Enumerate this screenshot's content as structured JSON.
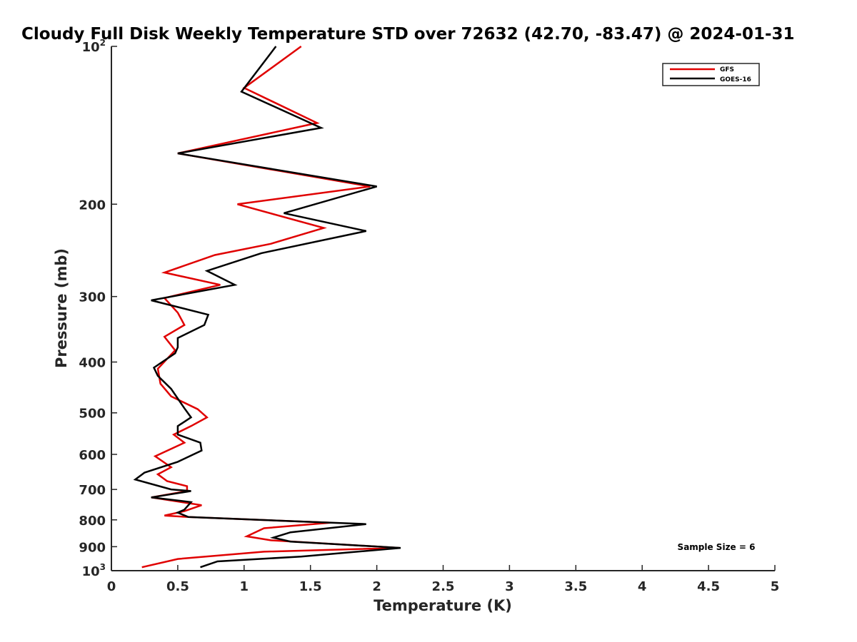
{
  "chart_data": {
    "type": "line",
    "title": "Cloudy Full Disk Weekly Temperature STD over 72632 (42.70, -83.47) @ 2024-01-31",
    "xlabel": "Temperature (K)",
    "ylabel": "Pressure (mb)",
    "xlim": [
      0,
      5
    ],
    "ylim": [
      1000,
      100
    ],
    "y_scale": "log",
    "y_reversed": true,
    "grid": false,
    "legend_position": "top-right",
    "x_ticks": [
      0,
      0.5,
      1,
      1.5,
      2,
      2.5,
      3,
      3.5,
      4,
      4.5,
      5
    ],
    "x_tick_labels": [
      "0",
      "0.5",
      "1",
      "1.5",
      "2",
      "2.5",
      "3",
      "3.5",
      "4",
      "4.5",
      "5"
    ],
    "y_ticks": [
      {
        "value": 100,
        "base": "10",
        "exp": "2"
      },
      {
        "value": 200,
        "label": "200"
      },
      {
        "value": 300,
        "label": "300"
      },
      {
        "value": 400,
        "label": "400"
      },
      {
        "value": 500,
        "label": "500"
      },
      {
        "value": 600,
        "label": "600"
      },
      {
        "value": 700,
        "label": "700"
      },
      {
        "value": 800,
        "label": "800"
      },
      {
        "value": 900,
        "label": "900"
      },
      {
        "value": 1000,
        "base": "10",
        "exp": "3"
      }
    ],
    "series": [
      {
        "name": "GFS",
        "color": "#e00000",
        "points": [
          [
            1.43,
            100
          ],
          [
            1.0,
            120
          ],
          [
            1.55,
            140
          ],
          [
            0.5,
            160
          ],
          [
            1.95,
            185
          ],
          [
            0.95,
            200
          ],
          [
            1.6,
            222
          ],
          [
            1.2,
            238
          ],
          [
            0.78,
            250
          ],
          [
            0.4,
            270
          ],
          [
            0.82,
            285
          ],
          [
            0.4,
            302
          ],
          [
            0.5,
            322
          ],
          [
            0.55,
            340
          ],
          [
            0.4,
            358
          ],
          [
            0.48,
            380
          ],
          [
            0.35,
            412
          ],
          [
            0.37,
            440
          ],
          [
            0.45,
            465
          ],
          [
            0.65,
            492
          ],
          [
            0.72,
            510
          ],
          [
            0.6,
            530
          ],
          [
            0.47,
            550
          ],
          [
            0.55,
            570
          ],
          [
            0.33,
            605
          ],
          [
            0.45,
            635
          ],
          [
            0.35,
            655
          ],
          [
            0.42,
            675
          ],
          [
            0.57,
            690
          ],
          [
            0.57,
            705
          ],
          [
            0.3,
            725
          ],
          [
            0.68,
            750
          ],
          [
            0.55,
            770
          ],
          [
            0.4,
            785
          ],
          [
            0.58,
            790
          ],
          [
            1.65,
            810
          ],
          [
            1.15,
            830
          ],
          [
            1.02,
            860
          ],
          [
            1.2,
            875
          ],
          [
            2.17,
            905
          ],
          [
            1.15,
            920
          ],
          [
            0.5,
            950
          ],
          [
            0.23,
            985
          ]
        ]
      },
      {
        "name": "GOES-16",
        "color": "#000000",
        "points": [
          [
            1.24,
            100
          ],
          [
            0.98,
            122
          ],
          [
            1.58,
            143
          ],
          [
            0.5,
            160
          ],
          [
            2.0,
            185
          ],
          [
            1.3,
            208
          ],
          [
            1.92,
            225
          ],
          [
            1.13,
            248
          ],
          [
            0.72,
            268
          ],
          [
            0.93,
            285
          ],
          [
            0.3,
            305
          ],
          [
            0.73,
            325
          ],
          [
            0.7,
            340
          ],
          [
            0.5,
            360
          ],
          [
            0.5,
            375
          ],
          [
            0.48,
            385
          ],
          [
            0.32,
            410
          ],
          [
            0.35,
            425
          ],
          [
            0.45,
            450
          ],
          [
            0.55,
            490
          ],
          [
            0.6,
            510
          ],
          [
            0.5,
            530
          ],
          [
            0.5,
            550
          ],
          [
            0.67,
            570
          ],
          [
            0.68,
            590
          ],
          [
            0.5,
            620
          ],
          [
            0.25,
            650
          ],
          [
            0.18,
            670
          ],
          [
            0.45,
            700
          ],
          [
            0.6,
            705
          ],
          [
            0.3,
            725
          ],
          [
            0.6,
            740
          ],
          [
            0.55,
            765
          ],
          [
            0.5,
            775
          ],
          [
            0.58,
            790
          ],
          [
            1.92,
            815
          ],
          [
            1.35,
            845
          ],
          [
            1.25,
            860
          ],
          [
            1.22,
            865
          ],
          [
            1.35,
            880
          ],
          [
            2.18,
            905
          ],
          [
            1.43,
            940
          ],
          [
            0.8,
            960
          ],
          [
            0.67,
            985
          ]
        ]
      }
    ],
    "annotation": "Sample Size = 6"
  }
}
